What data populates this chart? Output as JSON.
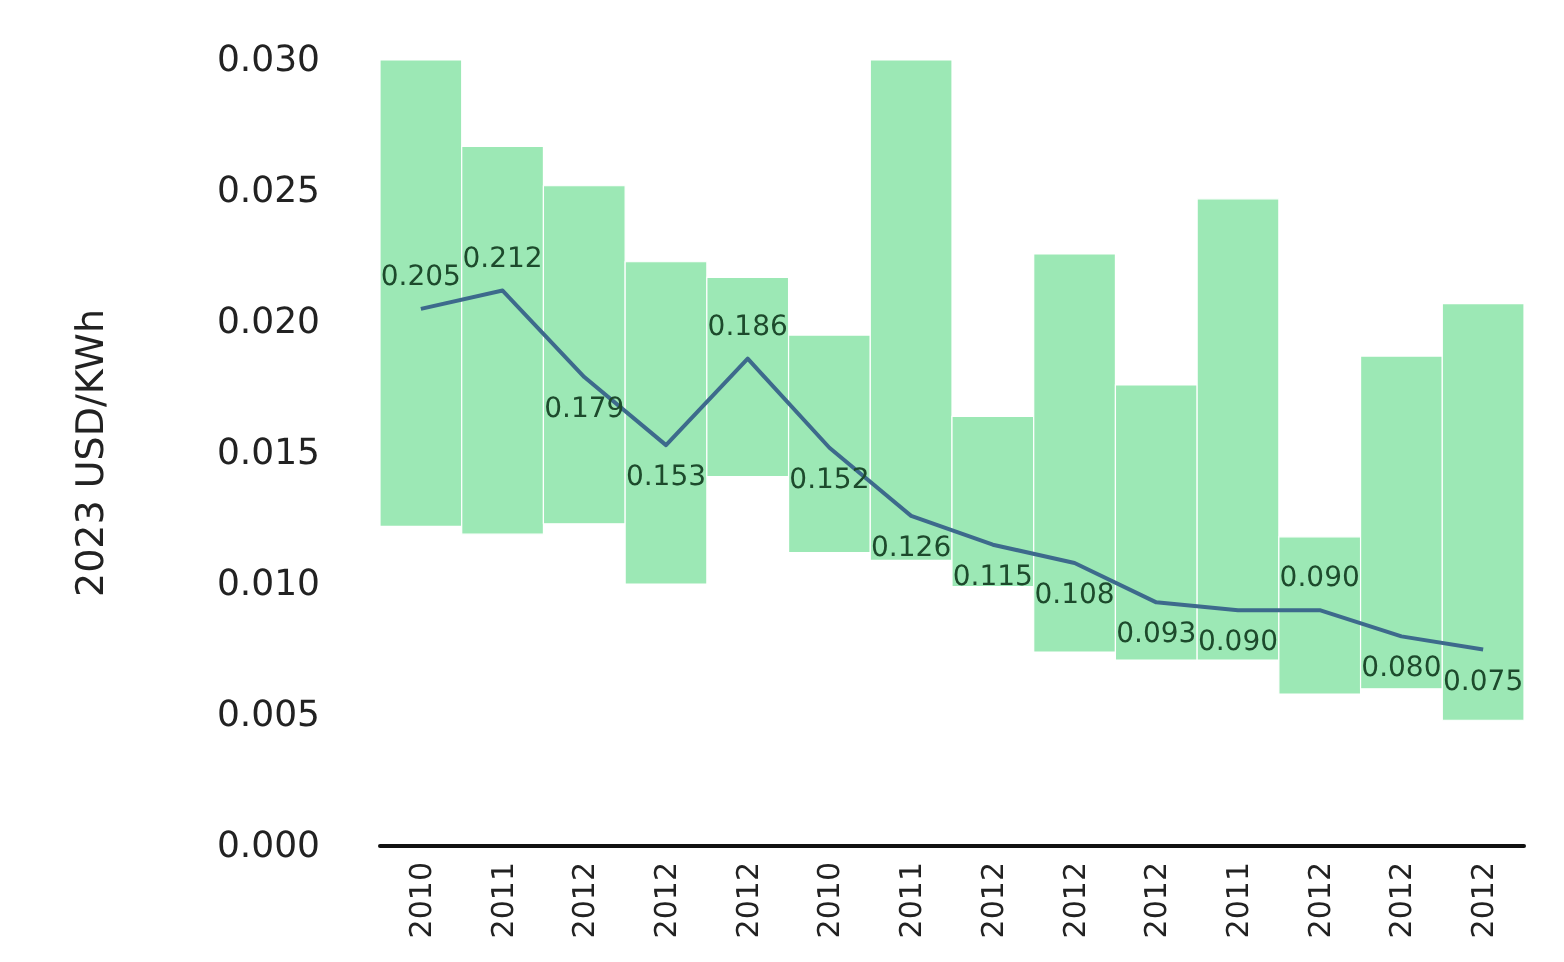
{
  "chart_data": {
    "type": "bar",
    "ylabel": "2023 USD/KWh",
    "categories": [
      "2010",
      "2011",
      "2012",
      "2012",
      "2012",
      "2010",
      "2011",
      "2012",
      "2012",
      "2012",
      "2011",
      "2012",
      "2012",
      "2012"
    ],
    "series": [
      {
        "color": "#9ce8b5",
        "base": [
          0.0122,
          0.0119,
          0.0123,
          0.01,
          0.0141,
          0.0112,
          0.0109,
          0.0099,
          0.0074,
          0.0071,
          0.0071,
          0.0058,
          0.006,
          0.0048
        ],
        "values": [
          0.0178,
          0.0148,
          0.0129,
          0.0123,
          0.0076,
          0.0083,
          0.0191,
          0.0065,
          0.0152,
          0.0105,
          0.0176,
          0.006,
          0.0127,
          0.0159
        ]
      },
      {
        "type": "line",
        "axis": "y2",
        "color": "#3d6a8c",
        "values": [
          0.205,
          0.212,
          0.179,
          0.153,
          0.186,
          0.152,
          0.126,
          0.115,
          0.108,
          0.093,
          0.09,
          0.09,
          0.08,
          0.075
        ],
        "value_labels": [
          "0.205",
          "0.212",
          "0.179",
          "0.153",
          "0.186",
          "0.152",
          "0.126",
          "0.115",
          "0.108",
          "0.093",
          "0.090",
          "0.090",
          "0.080",
          "0.075"
        ]
      }
    ],
    "ylim": [
      0,
      0.03
    ],
    "yticks": [
      {
        "value": 0,
        "label": "0.000"
      },
      {
        "value": 0.005,
        "label": "0.005"
      },
      {
        "value": 0.01,
        "label": "0.010"
      },
      {
        "value": 0.015,
        "label": "0.015"
      },
      {
        "value": 0.02,
        "label": "0.020"
      },
      {
        "value": 0.025,
        "label": "0.025"
      },
      {
        "value": 0.03,
        "label": "0.030"
      }
    ],
    "y2lim": [
      0,
      0.3
    ],
    "grid": false,
    "marker": "none"
  }
}
